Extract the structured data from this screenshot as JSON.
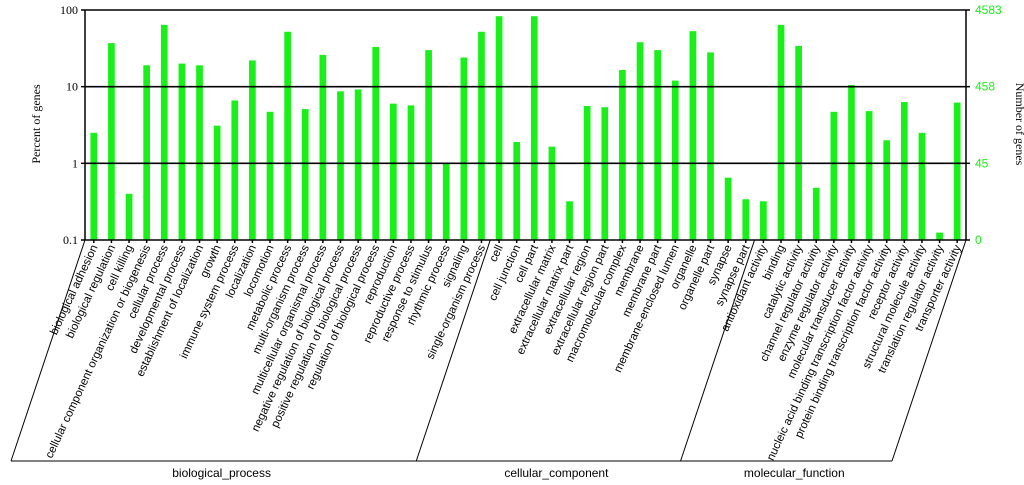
{
  "chart_data": {
    "type": "bar",
    "y_scale": "log",
    "ylabel": "Percent of genes",
    "ylabel_right": "Number of genes",
    "yticks_left": [
      "100",
      "10",
      "1",
      "0.1"
    ],
    "yticks_right": [
      "4583",
      "458",
      "45",
      "0"
    ],
    "ylim": [
      0.1,
      100
    ],
    "grid": true,
    "bar_color": "#19f019",
    "categories": [
      "biological adhesion",
      "biological regulation",
      "cell killing",
      "cellular component organization or biogenesis",
      "cellular process",
      "developmental process",
      "establishment of localization",
      "growth",
      "immune system process",
      "localization",
      "locomotion",
      "metabolic process",
      "multi-organism process",
      "multicellular organismal process",
      "negative regulation of biological process",
      "positive regulation of biological process",
      "regulation of biological process",
      "reproduction",
      "reproductive process",
      "response to stimulus",
      "rhythmic process",
      "signaling",
      "single-organism process",
      "cell",
      "cell junction",
      "cell part",
      "extracellular matrix",
      "extracellular matrix part",
      "extracellular region",
      "extracellular region part",
      "macromolecular complex",
      "membrane",
      "membrane part",
      "membrane-enclosed lumen",
      "organelle",
      "organelle part",
      "synapse",
      "synapse part",
      "antioxidant activity",
      "binding",
      "catalytic activity",
      "channel regulator activity",
      "enzyme regulator activity",
      "molecular transducer activity",
      "nucleic acid binding transcription factor activity",
      "protein binding transcription factor activity",
      "receptor activity",
      "structural molecule activity",
      "translation regulator activity",
      "transporter activity"
    ],
    "values": [
      2.5,
      37,
      0.4,
      19,
      64,
      20,
      19,
      3.1,
      6.6,
      22,
      4.7,
      52,
      5.1,
      26,
      8.7,
      9.2,
      33,
      6,
      5.7,
      30,
      1.0,
      24,
      52,
      83,
      1.9,
      83,
      1.65,
      0.32,
      5.6,
      5.4,
      16.5,
      38,
      30,
      12,
      53,
      28,
      0.65,
      0.34,
      0.32,
      64,
      34,
      0.48,
      4.7,
      10.5,
      4.8,
      2.0,
      6.3,
      2.5,
      0.125,
      6.2
    ],
    "groups": [
      {
        "name": "biological_process",
        "start": 0,
        "end": 22
      },
      {
        "name": "cellular_component",
        "start": 23,
        "end": 37
      },
      {
        "name": "molecular_function",
        "start": 38,
        "end": 49
      }
    ]
  }
}
